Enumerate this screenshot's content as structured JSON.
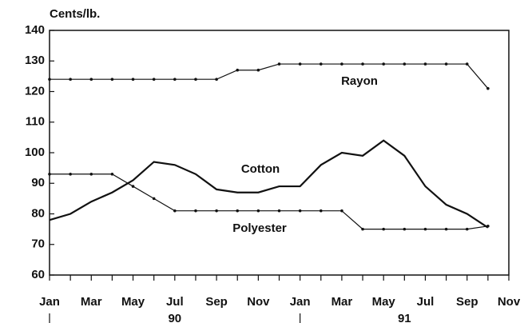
{
  "chart_data": {
    "type": "line",
    "y_label": "Cents/lb.",
    "categories": [
      "Jan",
      null,
      "Mar",
      null,
      "May",
      null,
      "Jul",
      null,
      "Sep",
      null,
      "Nov",
      null,
      "Jan",
      null,
      "Mar",
      null,
      "May",
      null,
      "Jul",
      null,
      "Sep",
      null,
      "Nov"
    ],
    "years": [
      "90",
      "91"
    ],
    "series": [
      {
        "name": "Rayon",
        "color": "#111111",
        "markers": true,
        "values": [
          124,
          124,
          124,
          124,
          124,
          124,
          124,
          124,
          124,
          127,
          127,
          129,
          129,
          129,
          129,
          129,
          129,
          129,
          129,
          129,
          129,
          121,
          null
        ]
      },
      {
        "name": "Cotton",
        "color": "#111111",
        "markers": false,
        "values": [
          78,
          80,
          84,
          87,
          91,
          97,
          96,
          93,
          88,
          87,
          87,
          89,
          89,
          96,
          100,
          99,
          104,
          99,
          89,
          83,
          80,
          75.5,
          null
        ]
      },
      {
        "name": "Polyester",
        "color": "#111111",
        "markers": true,
        "values": [
          93,
          93,
          93,
          93,
          89,
          85,
          81,
          81,
          81,
          81,
          81,
          81,
          81,
          81,
          81,
          75,
          75,
          75,
          75,
          75,
          75,
          76,
          null
        ]
      }
    ],
    "ylim": [
      60,
      140
    ],
    "yticks": [
      60,
      70,
      80,
      90,
      100,
      110,
      120,
      130,
      140
    ]
  }
}
